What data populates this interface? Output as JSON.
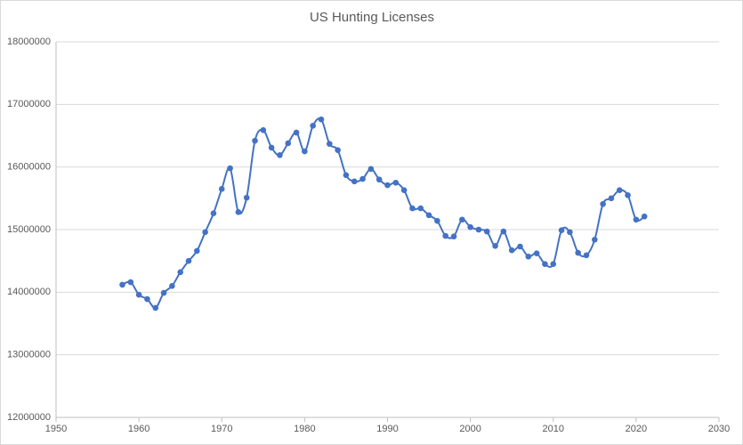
{
  "chart_data": {
    "type": "scatter",
    "title": "US Hunting Licenses",
    "series": [
      {
        "name": "Hunting Licenses",
        "color": "#4472c4",
        "x": [
          1958,
          1959,
          1960,
          1961,
          1962,
          1963,
          1964,
          1965,
          1966,
          1967,
          1968,
          1969,
          1970,
          1971,
          1972,
          1973,
          1974,
          1975,
          1976,
          1977,
          1978,
          1979,
          1980,
          1981,
          1982,
          1983,
          1984,
          1985,
          1986,
          1987,
          1988,
          1989,
          1990,
          1991,
          1992,
          1993,
          1994,
          1995,
          1996,
          1997,
          1998,
          1999,
          2000,
          2001,
          2002,
          2003,
          2004,
          2005,
          2006,
          2007,
          2008,
          2009,
          2010,
          2011,
          2012,
          2013,
          2014,
          2015,
          2016,
          2017,
          2018,
          2019,
          2020,
          2021
        ],
        "values": [
          14120000,
          14160000,
          13960000,
          13890000,
          13750000,
          13990000,
          14100000,
          14320000,
          14500000,
          14660000,
          14960000,
          15260000,
          15650000,
          15980000,
          15280000,
          15510000,
          16420000,
          16590000,
          16310000,
          16190000,
          16380000,
          16550000,
          16250000,
          16660000,
          16760000,
          16370000,
          16270000,
          15870000,
          15770000,
          15810000,
          15970000,
          15800000,
          15710000,
          15750000,
          15630000,
          15340000,
          15340000,
          15230000,
          15140000,
          14900000,
          14890000,
          15160000,
          15040000,
          15000000,
          14970000,
          14740000,
          14970000,
          14670000,
          14730000,
          14570000,
          14620000,
          14450000,
          14450000,
          14990000,
          14960000,
          14630000,
          14590000,
          14840000,
          15410000,
          15500000,
          15630000,
          15550000,
          15160000,
          15210000
        ]
      }
    ],
    "xlim": [
      1950,
      2030
    ],
    "xticks": [
      1950,
      1960,
      1970,
      1980,
      1990,
      2000,
      2010,
      2020,
      2030
    ],
    "ylim": [
      12000000,
      18000000
    ],
    "yticks": [
      12000000,
      13000000,
      14000000,
      15000000,
      16000000,
      17000000,
      18000000
    ],
    "grid": true
  }
}
